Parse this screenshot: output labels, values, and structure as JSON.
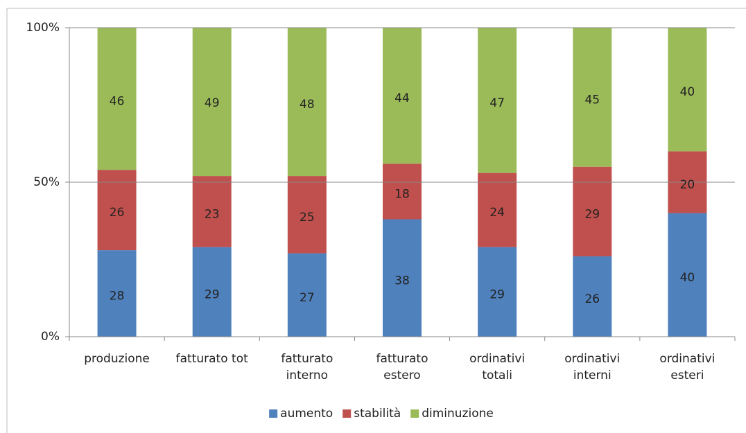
{
  "chart_data": {
    "type": "stacked_bar",
    "categories": [
      "produzione",
      "fatturato tot",
      "fatturato\ninterno",
      "fatturato\nestero",
      "ordinativi\ntotali",
      "ordinativi\ninterni",
      "ordinativi\nesteri"
    ],
    "series": [
      {
        "name": "aumento",
        "color": "#4f81bd",
        "values": [
          28,
          29,
          27,
          38,
          29,
          26,
          40
        ]
      },
      {
        "name": "stabilità",
        "color": "#c0504d",
        "values": [
          26,
          23,
          25,
          18,
          24,
          29,
          20
        ]
      },
      {
        "name": "diminuzione",
        "color": "#9bbb59",
        "values": [
          46,
          49,
          48,
          44,
          47,
          45,
          40
        ]
      }
    ],
    "ylim": [
      0,
      100
    ],
    "yticks": [
      {
        "value": 0,
        "label": "0%"
      },
      {
        "value": 50,
        "label": "50%"
      },
      {
        "value": 100,
        "label": "100%"
      }
    ],
    "grid": true,
    "legend": "bottom"
  }
}
